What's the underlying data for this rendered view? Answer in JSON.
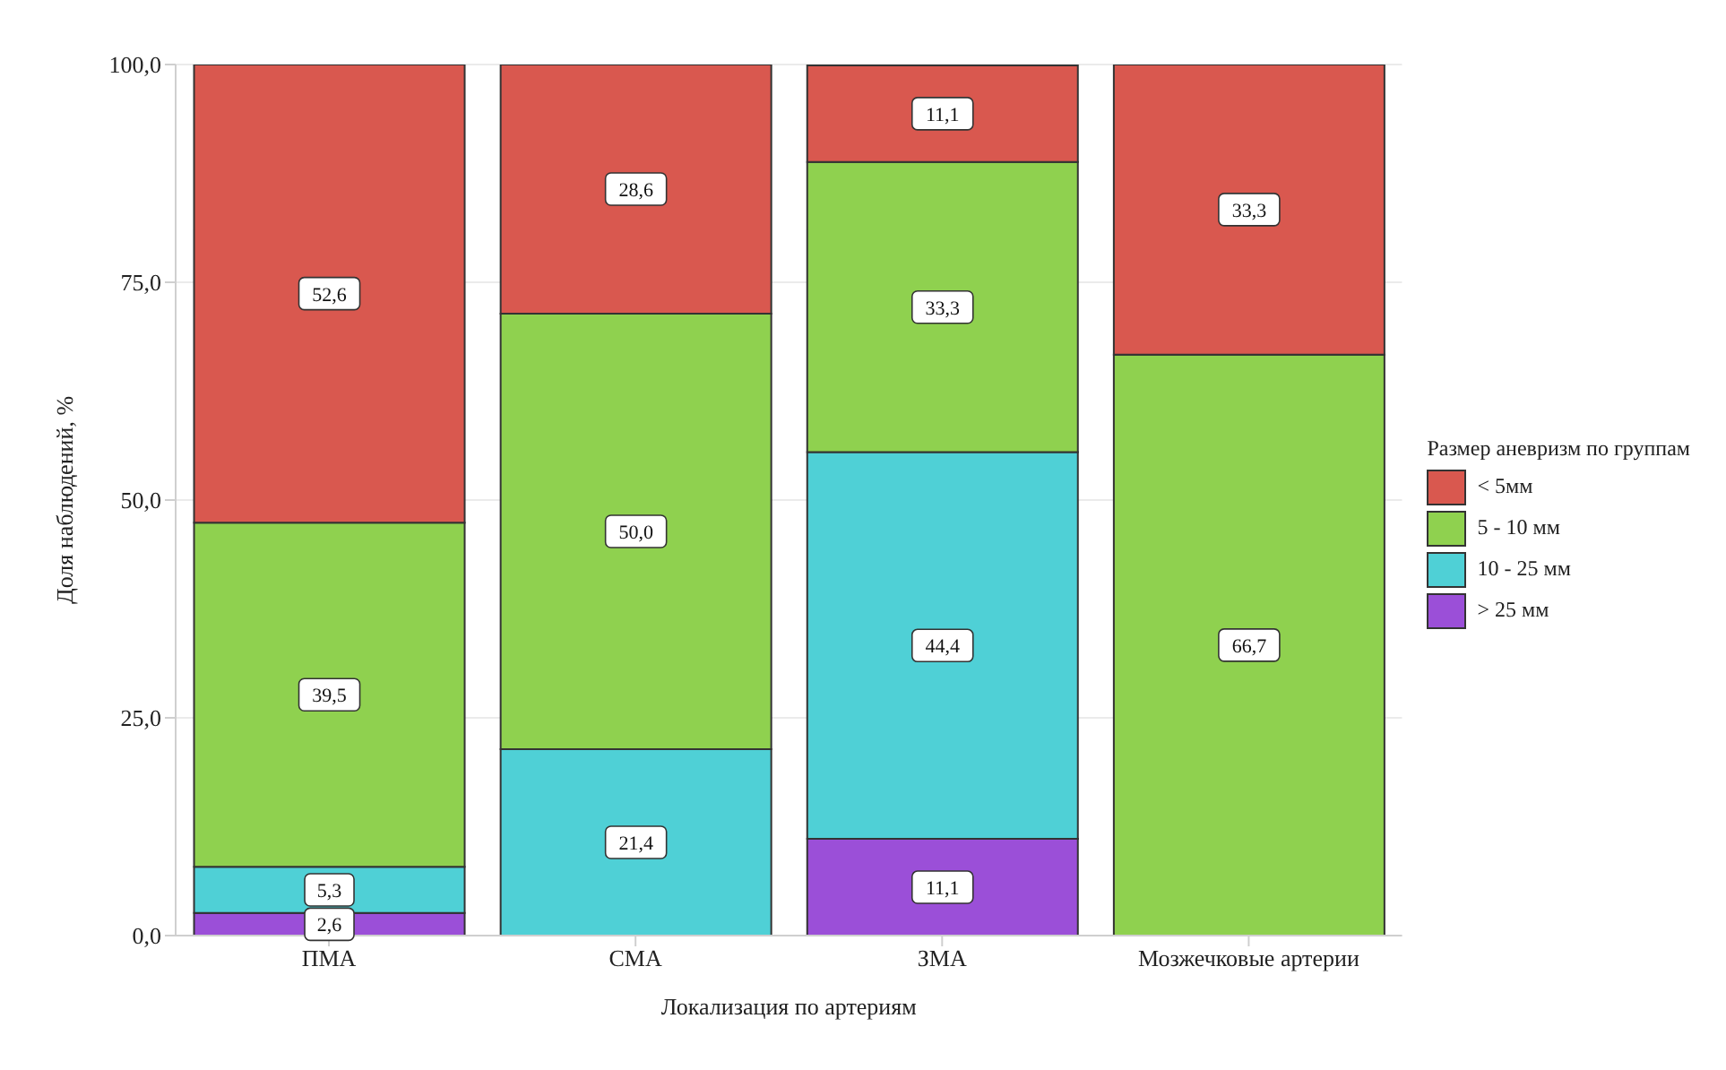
{
  "chart_data": {
    "type": "bar",
    "stacked": true,
    "xlabel": "Локализация по артериям",
    "ylabel": "Доля наблюдений, %",
    "legend_title": "Размер аневризм по группам",
    "legend": "right",
    "grid": "y",
    "categories": [
      "ПМА",
      "СМА",
      "ЗМА",
      "Мозжечковые артерии"
    ],
    "ylim": [
      0,
      100
    ],
    "yticks": [
      {
        "value": 0,
        "label": "0,0"
      },
      {
        "value": 25,
        "label": "25,0"
      },
      {
        "value": 50,
        "label": "50,0"
      },
      {
        "value": 75,
        "label": "75,0"
      },
      {
        "value": 100,
        "label": "100,0"
      }
    ],
    "series": [
      {
        "name": "> 25 мм",
        "color": "#9b4fd8",
        "values": [
          2.6,
          null,
          11.1,
          null
        ],
        "value_labels": [
          "2,6",
          null,
          "11,1",
          null
        ]
      },
      {
        "name": "10 - 25 мм",
        "color": "#4fd0d6",
        "values": [
          5.3,
          21.4,
          44.4,
          null
        ],
        "value_labels": [
          "5,3",
          "21,4",
          "44,4",
          null
        ]
      },
      {
        "name": "5 - 10 мм",
        "color": "#8fd14f",
        "values": [
          39.5,
          50.0,
          33.3,
          66.7
        ],
        "value_labels": [
          "39,5",
          "50,0",
          "33,3",
          "66,7"
        ]
      },
      {
        "name": "< 5мм",
        "color": "#d9584f",
        "values": [
          52.6,
          28.6,
          11.1,
          33.3
        ],
        "value_labels": [
          "52,6",
          "28,6",
          "11,1",
          "33,3"
        ]
      }
    ]
  }
}
